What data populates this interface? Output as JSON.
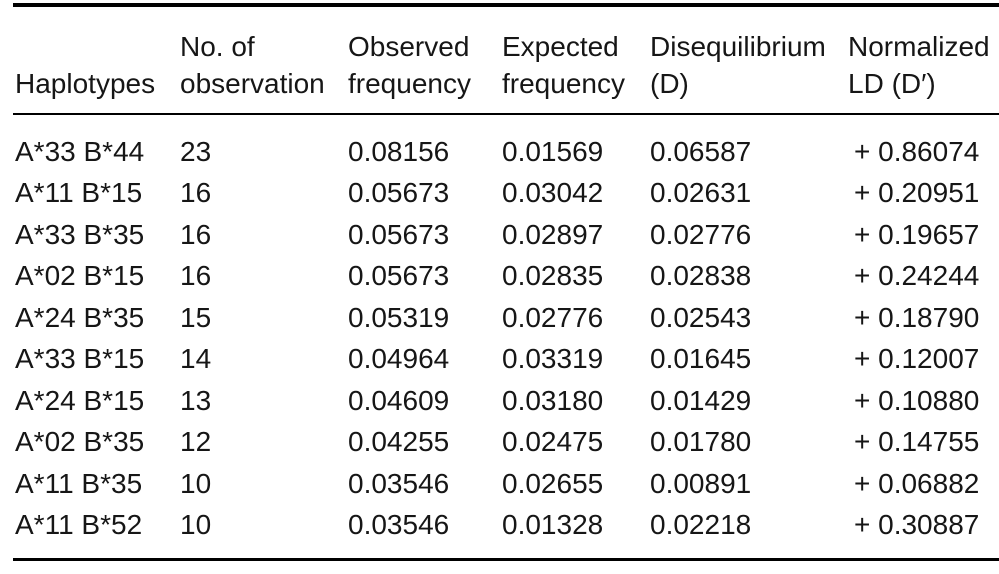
{
  "colors": {
    "background": "#ffffff",
    "text": "#161616",
    "rule": "#000000"
  },
  "table": {
    "headers": [
      "Haplotypes",
      "No. of\nobservation",
      "Observed\nfrequency",
      "Expected\nfrequency",
      "Disequilibrium\n(D)",
      "Normalized\nLD (D′)"
    ],
    "rows": [
      [
        "A*33 B*44",
        "23",
        "0.08156",
        "0.01569",
        "0.06587",
        "+ 0.86074"
      ],
      [
        "A*11 B*15",
        "16",
        "0.05673",
        "0.03042",
        "0.02631",
        "+ 0.20951"
      ],
      [
        "A*33 B*35",
        "16",
        "0.05673",
        "0.02897",
        "0.02776",
        "+ 0.19657"
      ],
      [
        "A*02 B*15",
        "16",
        "0.05673",
        "0.02835",
        "0.02838",
        "+ 0.24244"
      ],
      [
        "A*24 B*35",
        "15",
        "0.05319",
        "0.02776",
        "0.02543",
        "+ 0.18790"
      ],
      [
        "A*33 B*15",
        "14",
        "0.04964",
        "0.03319",
        "0.01645",
        "+ 0.12007"
      ],
      [
        "A*24 B*15",
        "13",
        "0.04609",
        "0.03180",
        "0.01429",
        "+ 0.10880"
      ],
      [
        "A*02 B*35",
        "12",
        "0.04255",
        "0.02475",
        "0.01780",
        "+ 0.14755"
      ],
      [
        "A*11 B*35",
        "10",
        "0.03546",
        "0.02655",
        "0.00891",
        "+ 0.06882"
      ],
      [
        "A*11 B*52",
        "10",
        "0.03546",
        "0.01328",
        "0.02218",
        "+ 0.30887"
      ]
    ]
  }
}
